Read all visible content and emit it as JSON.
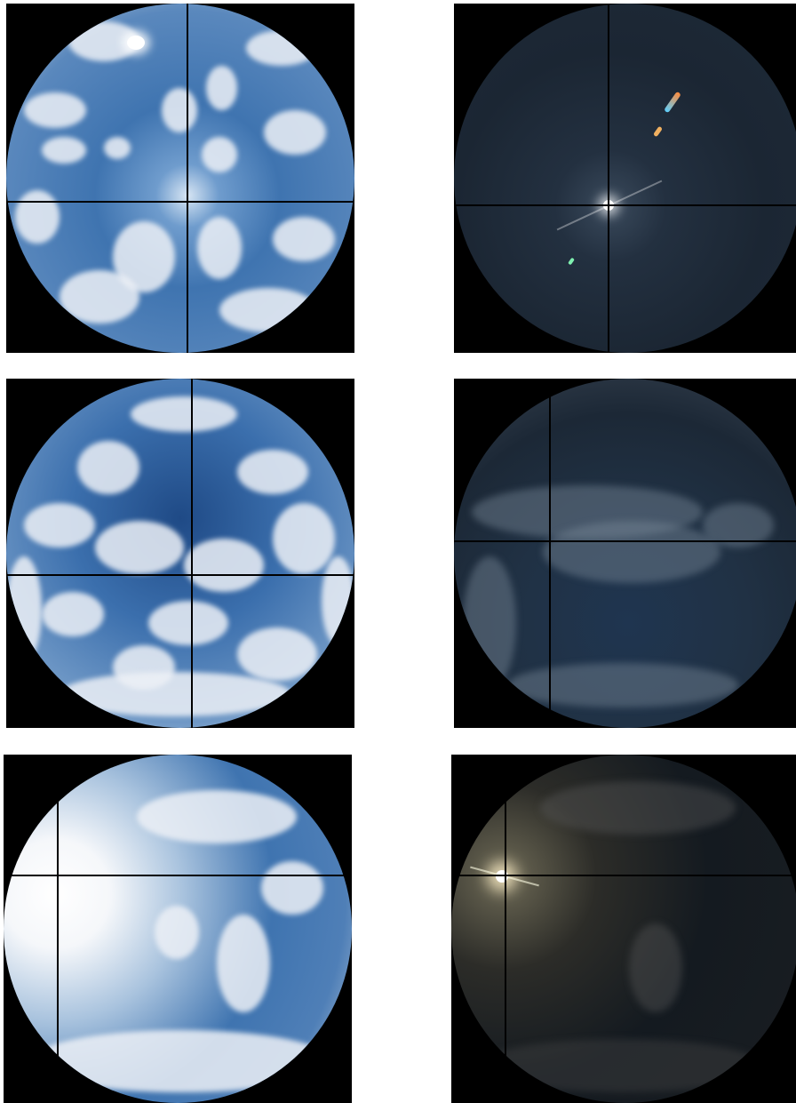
{
  "image": {
    "description_free": true,
    "layout": "grid",
    "rows": 3,
    "columns": 2
  },
  "panels": [
    {
      "row": 1,
      "col": 1,
      "kind": "fisheye-sky-normal-exposure",
      "scene": "scattered-cumulus",
      "sun": "top-left-near-edge"
    },
    {
      "row": 1,
      "col": 2,
      "kind": "fisheye-sky-low-exposure",
      "scene": "dark-sky-sun-at-crosshair",
      "sun": "center"
    },
    {
      "row": 2,
      "col": 1,
      "kind": "fisheye-sky-normal-exposure",
      "scene": "ring-of-cumulus",
      "sun": "not-visible"
    },
    {
      "row": 2,
      "col": 2,
      "kind": "fisheye-sky-low-exposure",
      "scene": "dark-sky-cloud-band",
      "sun": "crosshair"
    },
    {
      "row": 3,
      "col": 1,
      "kind": "fisheye-sky-normal-exposure",
      "scene": "hazy-sky-bright-left",
      "sun": "left-edge"
    },
    {
      "row": 3,
      "col": 2,
      "kind": "fisheye-sky-low-exposure",
      "scene": "dark-sky-sun-flare-left",
      "sun": "crosshair"
    }
  ],
  "colors": {
    "sky_blue": "#3f74b0",
    "deep_blue": "#1d3f74",
    "cloud": "#e7ebf1",
    "dark_sky": "#1b2633",
    "crosshair": "#000000",
    "background": "#000000"
  }
}
